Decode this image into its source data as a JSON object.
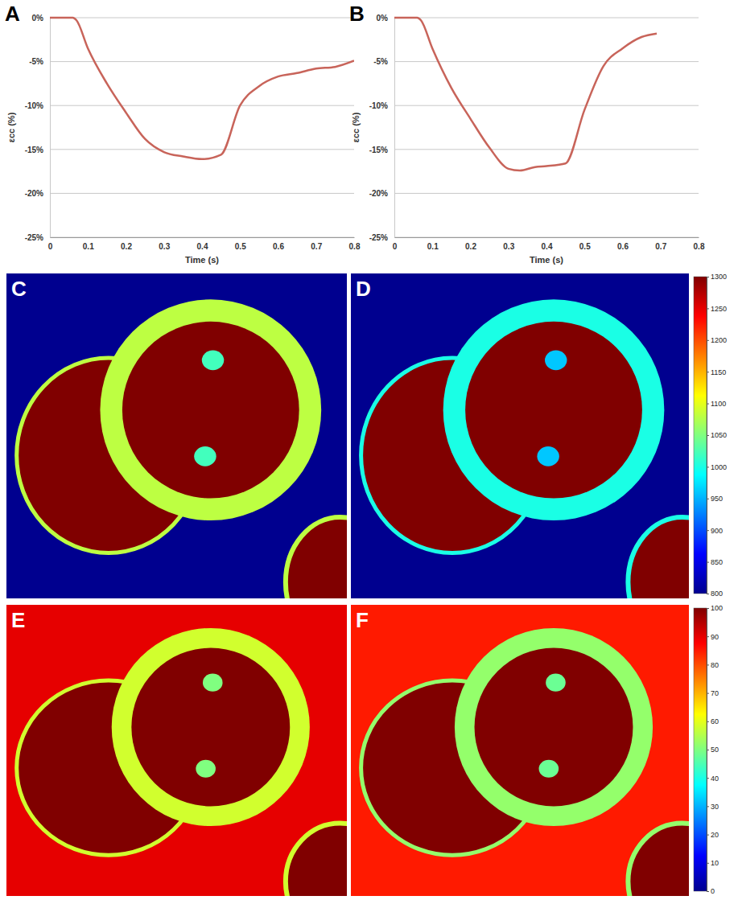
{
  "chart_data": [
    {
      "type": "line",
      "panel": "A",
      "x_label": "Time (s)",
      "y_label": "εcc (%)",
      "color": "#c8645a",
      "grid": true,
      "x": [
        0,
        0.06,
        0.07,
        0.1,
        0.15,
        0.2,
        0.25,
        0.3,
        0.35,
        0.4,
        0.45,
        0.5,
        0.55,
        0.6,
        0.65,
        0.7,
        0.75,
        0.8
      ],
      "values": [
        0,
        0,
        -0.3,
        -3.5,
        -7.5,
        -10.8,
        -13.8,
        -15.3,
        -15.8,
        -16.1,
        -15.6,
        -10,
        -7.8,
        -6.7,
        -6.3,
        -5.8,
        -5.6,
        -4.9
      ],
      "xlim": [
        0,
        0.8
      ],
      "xticks": [
        0,
        0.1,
        0.2,
        0.3,
        0.4,
        0.5,
        0.6,
        0.7,
        0.8
      ],
      "ylim": [
        -25,
        0
      ],
      "yticks": [
        {
          "value": -25,
          "label": "-25%"
        },
        {
          "value": -20,
          "label": "-20%"
        },
        {
          "value": -15,
          "label": "-15%"
        },
        {
          "value": -10,
          "label": "-10%"
        },
        {
          "value": -5,
          "label": "-5%"
        },
        {
          "value": 0,
          "label": "0%"
        }
      ]
    },
    {
      "type": "line",
      "panel": "B",
      "x_label": "Time (s)",
      "y_label": "εcc (%)",
      "color": "#c8645a",
      "grid": true,
      "x": [
        0,
        0.06,
        0.07,
        0.1,
        0.15,
        0.2,
        0.25,
        0.3,
        0.33,
        0.37,
        0.4,
        0.45,
        0.5,
        0.55,
        0.6,
        0.65,
        0.69
      ],
      "values": [
        0,
        0,
        -0.3,
        -3.5,
        -8,
        -11.5,
        -14.8,
        -17.2,
        -17.4,
        -17,
        -16.9,
        -16.6,
        -10.5,
        -5.5,
        -3.5,
        -2.2,
        -1.8
      ],
      "xlim": [
        0,
        0.8
      ],
      "xticks": [
        0,
        0.1,
        0.2,
        0.3,
        0.4,
        0.5,
        0.6,
        0.7,
        0.8
      ],
      "ylim": [
        -25,
        0
      ],
      "yticks": [
        {
          "value": -25,
          "label": "-25%"
        },
        {
          "value": -20,
          "label": "-20%"
        },
        {
          "value": -15,
          "label": "-15%"
        },
        {
          "value": -10,
          "label": "-10%"
        },
        {
          "value": -5,
          "label": "-5%"
        },
        {
          "value": 0,
          "label": "0%"
        }
      ]
    },
    {
      "type": "heatmap",
      "panels": [
        {
          "panel": "C",
          "background": 800,
          "blood_pool": 1300,
          "myocardium": 1080,
          "papillary": 1020
        },
        {
          "panel": "D",
          "background": 800,
          "blood_pool": 1300,
          "myocardium": 1000,
          "papillary": 960
        }
      ],
      "colorbar": {
        "range": [
          800,
          1300
        ],
        "ticks": [
          800,
          850,
          900,
          950,
          1000,
          1050,
          1100,
          1150,
          1200,
          1250,
          1300
        ]
      }
    },
    {
      "type": "heatmap",
      "panels": [
        {
          "panel": "E",
          "background": 90,
          "blood_pool": 100,
          "myocardium": 58,
          "papillary": 50
        },
        {
          "panel": "F",
          "background": 85,
          "blood_pool": 100,
          "myocardium": 52,
          "papillary": 48
        }
      ],
      "colorbar": {
        "range": [
          0,
          100
        ],
        "ticks": [
          0,
          10,
          20,
          30,
          40,
          50,
          60,
          70,
          80,
          90,
          100
        ]
      }
    }
  ]
}
